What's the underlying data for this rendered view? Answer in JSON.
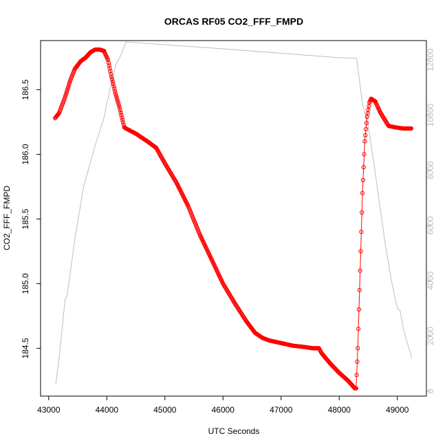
{
  "chart_data": {
    "type": "line",
    "title": "ORCAS RF05 CO2_FFF_FMPD",
    "xlabel": "UTC Seconds",
    "ylabel": "CO2_FFF_FMPD",
    "xlim": [
      42860,
      49500
    ],
    "ylim": [
      184.13,
      186.88
    ],
    "y2lim": [
      -180,
      12700
    ],
    "x_ticks": [
      43000,
      44000,
      45000,
      46000,
      47000,
      48000,
      49000
    ],
    "x_tick_labels": [
      "43000",
      "44000",
      "45000",
      "46000",
      "47000",
      "48000",
      "49000"
    ],
    "y_ticks": [
      184.5,
      185.0,
      185.5,
      186.0,
      186.5
    ],
    "y_tick_labels": [
      "184.5",
      "185.0",
      "185.5",
      "186.0",
      "186.5"
    ],
    "y2_ticks": [
      0,
      2000,
      4000,
      6000,
      8000,
      10000,
      12000
    ],
    "y2_tick_labels": [
      "0",
      "2000",
      "4000",
      "6000",
      "8000",
      "10000",
      "12000"
    ],
    "grid": false,
    "colors": {
      "co2": "#ff0000",
      "altitude": "#bebebe",
      "axes": "#000000"
    },
    "series": [
      {
        "role": "co2",
        "axis": "left",
        "style": "open-circles-with-line",
        "x": [
          43110,
          43180,
          43280,
          43370,
          43450,
          43550,
          43640,
          43720,
          43800,
          43880,
          43950,
          44020,
          44080,
          44150,
          44220,
          44300,
          44330,
          44500,
          44700,
          44850,
          45000,
          45200,
          45400,
          45600,
          45800,
          46000,
          46200,
          46400,
          46550,
          46680,
          46800,
          47000,
          47200,
          47400,
          47550,
          47650,
          47700,
          47850,
          48000,
          48150,
          48270,
          48290,
          48320,
          48360,
          48400,
          48440,
          48480,
          48520,
          48550,
          48620,
          48700,
          48780,
          48850,
          48950,
          49100,
          49240
        ],
        "y": [
          186.28,
          186.32,
          186.44,
          186.57,
          186.66,
          186.72,
          186.75,
          186.79,
          186.81,
          186.81,
          186.8,
          186.73,
          186.6,
          186.47,
          186.36,
          186.21,
          186.2,
          186.16,
          186.1,
          186.05,
          185.93,
          185.78,
          185.6,
          185.38,
          185.19,
          185.0,
          184.85,
          184.71,
          184.62,
          184.58,
          184.56,
          184.54,
          184.52,
          184.51,
          184.5,
          184.5,
          184.46,
          184.38,
          184.31,
          184.25,
          184.19,
          184.19,
          184.5,
          185.1,
          185.7,
          186.1,
          186.29,
          186.4,
          186.43,
          186.41,
          186.33,
          186.27,
          186.22,
          186.21,
          186.2,
          186.2
        ]
      },
      {
        "role": "altitude",
        "axis": "right",
        "style": "line",
        "x": [
          43120,
          43180,
          43280,
          43320,
          43450,
          43600,
          43800,
          43950,
          44050,
          44150,
          44250,
          44330,
          45000,
          46000,
          47000,
          48000,
          48300,
          48400,
          48500,
          48600,
          48700,
          48800,
          48900,
          49000,
          49050,
          49100,
          49150,
          49250
        ],
        "y": [
          250,
          1200,
          3300,
          3500,
          5500,
          7400,
          8900,
          9900,
          10900,
          11800,
          12200,
          12650,
          12550,
          12400,
          12240,
          12080,
          12060,
          10400,
          9600,
          8200,
          6700,
          5200,
          4000,
          3000,
          2900,
          2300,
          1900,
          1200
        ]
      }
    ]
  }
}
